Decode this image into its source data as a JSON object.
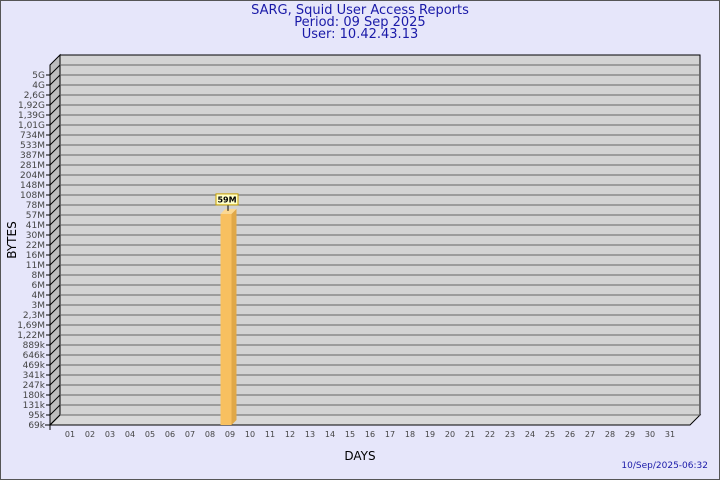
{
  "header": {
    "title": "SARG, Squid User Access Reports",
    "period": "Period: 09 Sep 2025",
    "user": "User: 10.42.43.13"
  },
  "footer": {
    "timestamp": "10/Sep/2025-06:32"
  },
  "colors": {
    "background": "#e6e6fa",
    "plot": "#d3d3d3",
    "bar": "#f8c060",
    "title": "#1a1aa8"
  },
  "chart_data": {
    "type": "bar",
    "xlabel": "DAYS",
    "ylabel": "BYTES",
    "y_scale": "log",
    "y_tick_labels": [
      "5G",
      "4G",
      "2,6G",
      "1,92G",
      "1,39G",
      "1,01G",
      "734M",
      "533M",
      "387M",
      "281M",
      "204M",
      "148M",
      "108M",
      "78M",
      "57M",
      "41M",
      "30M",
      "22M",
      "16M",
      "11M",
      "8M",
      "6M",
      "4M",
      "3M",
      "2,3M",
      "1,69M",
      "1,22M",
      "889k",
      "646k",
      "469k",
      "341k",
      "247k",
      "180k",
      "131k",
      "95k",
      "69k"
    ],
    "categories": [
      "01",
      "02",
      "03",
      "04",
      "05",
      "06",
      "07",
      "08",
      "09",
      "10",
      "11",
      "12",
      "13",
      "14",
      "15",
      "16",
      "17",
      "18",
      "19",
      "20",
      "21",
      "22",
      "23",
      "24",
      "25",
      "26",
      "27",
      "28",
      "29",
      "30",
      "31"
    ],
    "bars": [
      {
        "day": "09",
        "value": 59000000,
        "label": "59M"
      }
    ],
    "grid": true
  }
}
